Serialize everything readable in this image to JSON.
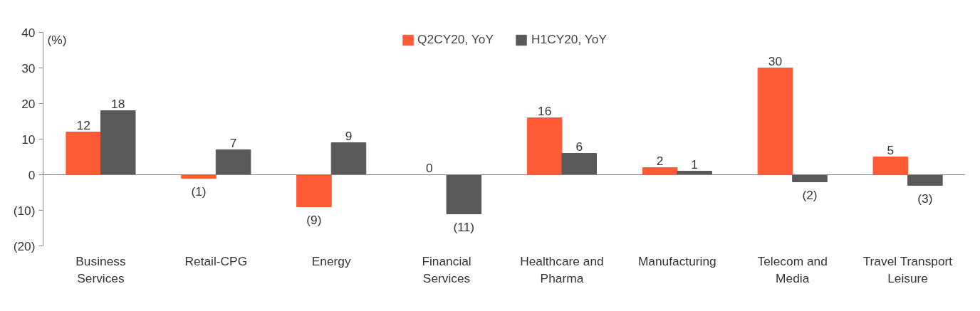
{
  "chart_data": {
    "type": "bar",
    "ylabel": "(%)",
    "categories": [
      "Business Services",
      "Retail-CPG",
      "Energy",
      "Financial Services",
      "Healthcare and Pharma",
      "Manufacturing",
      "Telecom and Media",
      "Travel Transport Leisure"
    ],
    "series": [
      {
        "name": "Q2CY20, YoY",
        "color": "#ff5a36",
        "values": [
          12,
          -1,
          -9,
          0,
          16,
          2,
          30,
          5
        ],
        "value_labels": [
          "12",
          "(1)",
          "(9)",
          "0",
          "16",
          "2",
          "30",
          "5"
        ]
      },
      {
        "name": "H1CY20, YoY",
        "color": "#595959",
        "values": [
          18,
          7,
          9,
          -11,
          6,
          1,
          -2,
          -3
        ],
        "value_labels": [
          "18",
          "7",
          "9",
          "(11)",
          "6",
          "1",
          "(2)",
          "(3)"
        ]
      }
    ],
    "ylim": [
      -20,
      40
    ],
    "yticks": [
      {
        "value": -20,
        "label": "(20)"
      },
      {
        "value": -10,
        "label": "(10)"
      },
      0,
      10,
      20,
      30,
      40
    ],
    "legend": "top"
  }
}
